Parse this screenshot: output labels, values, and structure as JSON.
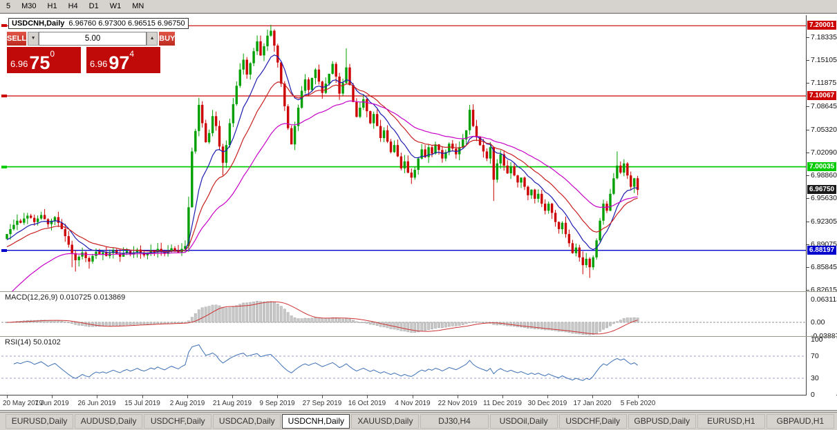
{
  "toolbar": {
    "timeframes": [
      "5",
      "M30",
      "H1",
      "H4",
      "D1",
      "W1",
      "MN"
    ]
  },
  "chart": {
    "symbol": "USDCNH,Daily",
    "ohlc_text": "6.96760 6.97300 6.96515 6.96750"
  },
  "trade_panel": {
    "sell_label": "SELL",
    "buy_label": "BUY",
    "volume": "5.00",
    "spinner_down": "▼",
    "spinner_up": "▲",
    "sell_price_main": "6.96",
    "sell_price_big": "75",
    "sell_price_sup": "0",
    "buy_price_main": "6.96",
    "buy_price_big": "97",
    "buy_price_sup": "4"
  },
  "levels": [
    {
      "price": 7.20001,
      "label": "7.20001",
      "color": "#cc0000",
      "width": 1.2
    },
    {
      "price": 7.10067,
      "label": "7.10067",
      "color": "#cc0000",
      "width": 1.2
    },
    {
      "price": 7.00035,
      "label": "7.00035",
      "color": "#00cc00",
      "width": 1.8
    },
    {
      "price": 6.88197,
      "label": "6.88197",
      "color": "#0000cc",
      "width": 1.4
    }
  ],
  "current_price": {
    "label": "6.96750",
    "value": 6.9675,
    "bg": "#1a1a1a"
  },
  "price_axis": [
    "7.18335",
    "7.15105",
    "7.11875",
    "7.08645",
    "7.05320",
    "7.02090",
    "6.98860",
    "6.95630",
    "6.92305",
    "6.89075",
    "6.85845",
    "6.82615"
  ],
  "macd": {
    "label": "MACD(12,26,9) 0.010725 0.013869",
    "axis": [
      "0.063113",
      "0.00",
      "-0.038872"
    ]
  },
  "rsi": {
    "label": "RSI(14) 50.0102",
    "axis": [
      "100",
      "70",
      "30",
      "0"
    ]
  },
  "date_axis": [
    "20 May 2019",
    "7 Jun 2019",
    "26 Jun 2019",
    "15 Jul 2019",
    "2 Aug 2019",
    "21 Aug 2019",
    "9 Sep 2019",
    "27 Sep 2019",
    "16 Oct 2019",
    "4 Nov 2019",
    "22 Nov 2019",
    "11 Dec 2019",
    "30 Dec 2019",
    "17 Jan 2020",
    "5 Feb 2020"
  ],
  "tabs": {
    "labels": [
      "EURUSD,Daily",
      "AUDUSD,Daily",
      "USDCHF,Daily",
      "USDCAD,Daily",
      "USDCNH,Daily",
      "XAUUSD,Daily",
      "DJ30,H4",
      "USDOil,Daily",
      "USDCHF,Daily",
      "GBPUSD,Daily",
      "EURUSD,H1",
      "GBPAUD,H1"
    ],
    "active_index": 4
  },
  "chart_data": {
    "type": "candlestick",
    "title": "USDCNH,Daily",
    "price_range": [
      6.824,
      7.215
    ],
    "x_tick_labels": [
      "20 May 2019",
      "7 Jun 2019",
      "26 Jun 2019",
      "15 Jul 2019",
      "2 Aug 2019",
      "21 Aug 2019",
      "9 Sep 2019",
      "27 Sep 2019",
      "16 Oct 2019",
      "4 Nov 2019",
      "22 Nov 2019",
      "11 Dec 2019",
      "30 Dec 2019",
      "17 Jan 2020",
      "5 Feb 2020"
    ],
    "y_tick_labels": [
      "7.18335",
      "7.15105",
      "7.11875",
      "7.08645",
      "7.05320",
      "7.02090",
      "6.98860",
      "6.95630",
      "6.92305",
      "6.89075",
      "6.85845",
      "6.82615"
    ],
    "first_open": 6.898,
    "wick": 0.009,
    "closes": [
      6.905,
      6.912,
      6.918,
      6.924,
      6.921,
      6.927,
      6.931,
      6.928,
      6.922,
      6.927,
      6.932,
      6.926,
      6.919,
      6.924,
      6.929,
      6.921,
      6.912,
      6.902,
      6.89,
      6.878,
      6.868,
      6.873,
      6.879,
      6.871,
      6.866,
      6.874,
      6.88,
      6.876,
      6.879,
      6.874,
      6.878,
      6.882,
      6.877,
      6.873,
      6.878,
      6.881,
      6.876,
      6.879,
      6.883,
      6.878,
      6.875,
      6.878,
      6.882,
      6.879,
      6.884,
      6.88,
      6.877,
      6.881,
      6.885,
      6.882,
      6.879,
      6.884,
      6.888,
      6.943,
      7.022,
      7.051,
      7.088,
      7.062,
      7.035,
      7.048,
      7.072,
      7.058,
      7.029,
      7.006,
      7.031,
      7.062,
      7.089,
      7.115,
      7.138,
      7.152,
      7.131,
      7.147,
      7.164,
      7.178,
      7.158,
      7.171,
      7.186,
      7.193,
      7.172,
      7.148,
      7.118,
      7.086,
      7.055,
      7.032,
      7.058,
      7.084,
      7.108,
      7.124,
      7.109,
      7.126,
      7.138,
      7.121,
      7.105,
      7.118,
      7.132,
      7.146,
      7.128,
      7.104,
      7.119,
      7.141,
      7.116,
      7.092,
      7.071,
      7.084,
      7.096,
      7.079,
      7.062,
      7.075,
      7.058,
      7.041,
      7.052,
      7.036,
      7.021,
      7.031,
      7.015,
      6.998,
      7.008,
      6.992,
      6.985,
      6.996,
      7.012,
      7.025,
      7.014,
      7.028,
      7.019,
      7.032,
      7.024,
      7.012,
      7.021,
      7.033,
      7.026,
      7.018,
      7.028,
      7.039,
      7.052,
      7.081,
      7.058,
      7.042,
      7.031,
      7.022,
      7.012,
      7.028,
      6.982,
      7.005,
      7.018,
      7.002,
      6.991,
      7.001,
      6.988,
      6.978,
      6.985,
      6.972,
      6.96,
      6.968,
      6.955,
      6.962,
      6.948,
      6.938,
      6.948,
      6.935,
      6.922,
      6.912,
      6.921,
      6.905,
      6.892,
      6.878,
      6.886,
      6.872,
      6.861,
      6.87,
      6.858,
      6.872,
      6.896,
      6.924,
      6.948,
      6.938,
      6.962,
      6.984,
      7.002,
      6.992,
      7.005,
      6.988,
      6.972,
      6.984,
      6.9675
    ],
    "wick_overrides": {
      "19": {
        "l": 6.858
      },
      "20": {
        "l": 6.852
      },
      "24": {
        "l": 6.856
      },
      "53": {
        "h": 6.958
      },
      "56": {
        "h": 7.098
      },
      "63": {
        "l": 6.988
      },
      "77": {
        "h": 7.1965
      },
      "99": {
        "h": 7.168
      },
      "118": {
        "l": 6.976
      },
      "135": {
        "h": 7.088
      },
      "142": {
        "l": 6.952
      },
      "168": {
        "l": 6.848
      },
      "170": {
        "l": 6.843
      },
      "178": {
        "h": 7.022
      }
    },
    "moving_averages": [
      {
        "period": 10,
        "color": "#1c1cb0",
        "seed": 6.895
      },
      {
        "period": 20,
        "color": "#c81e1e",
        "seed": 6.885
      },
      {
        "period": 40,
        "color": "#c800c8",
        "seed": 6.812
      }
    ],
    "indicators": {
      "macd": {
        "fast": 12,
        "slow": 26,
        "signal": 9,
        "current_macd": 0.010725,
        "current_signal": 0.013869,
        "range": [
          -0.038872,
          0.063113
        ]
      },
      "rsi": {
        "period": 14,
        "current": 50.0102,
        "levels": [
          70,
          30
        ],
        "range": [
          0,
          100
        ]
      }
    },
    "colors": {
      "up_candle": "#00a000",
      "down_candle": "#cc0000",
      "macd_histogram": "#c8c8c8",
      "macd_signal": "#cc3333",
      "rsi_line": "#3b6fb5",
      "background": "#ffffff"
    }
  }
}
